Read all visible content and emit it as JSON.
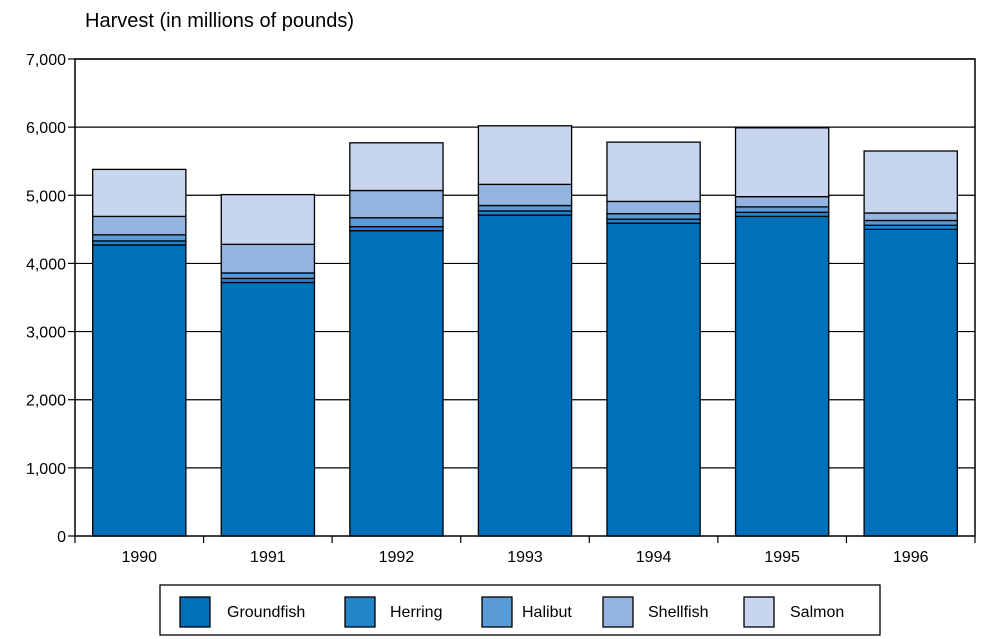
{
  "chart_data": {
    "type": "bar",
    "stacked": true,
    "title": "Harvest (in millions of pounds)",
    "categories": [
      "1990",
      "1991",
      "1992",
      "1993",
      "1994",
      "1995",
      "1996"
    ],
    "series": [
      {
        "name": "Groundfish",
        "color": "#0070ba",
        "values": [
          4270,
          3720,
          4480,
          4710,
          4590,
          4690,
          4500
        ]
      },
      {
        "name": "Herring",
        "color": "#2385c8",
        "values": [
          60,
          60,
          60,
          60,
          60,
          60,
          60
        ]
      },
      {
        "name": "Halibut",
        "color": "#5b9bd5",
        "values": [
          90,
          80,
          130,
          80,
          80,
          80,
          70
        ]
      },
      {
        "name": "Shellfish",
        "color": "#93b4e0",
        "values": [
          270,
          420,
          400,
          310,
          180,
          150,
          110
        ]
      },
      {
        "name": "Salmon",
        "color": "#c7d5ee",
        "values": [
          690,
          730,
          700,
          860,
          870,
          1010,
          910
        ]
      }
    ],
    "ylim": [
      0,
      7000
    ],
    "yticks": [
      "0",
      "1,000",
      "2,000",
      "3,000",
      "4,000",
      "5,000",
      "6,000",
      "7,000"
    ],
    "ytick_values": [
      0,
      1000,
      2000,
      3000,
      4000,
      5000,
      6000,
      7000
    ],
    "grid": true,
    "legend_position": "bottom"
  }
}
